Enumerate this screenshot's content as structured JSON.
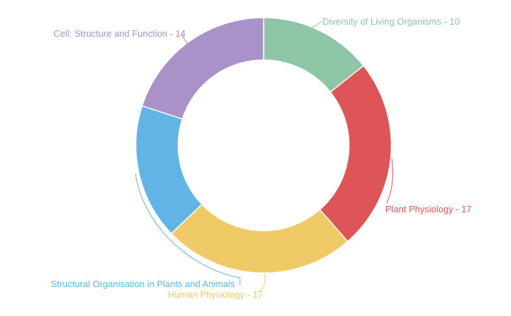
{
  "chart_data": {
    "type": "pie",
    "variant": "donut",
    "title": "",
    "categories": [
      "Diversity of Living Organisms",
      "Plant Physiology",
      "Human Physiology",
      "Structural Organisation in Plants and Animals",
      "Cell: Structure and Function"
    ],
    "values": [
      10,
      17,
      17,
      12,
      14
    ],
    "colors": [
      "#8fc5a7",
      "#de5558",
      "#efca67",
      "#62b4e6",
      "#a992c8"
    ],
    "labels": [
      "Diversity of Living Organisms - 10",
      "Plant Physiology - 17",
      "Human Physiology - 17",
      "Structural Organisation in Plants and Animals",
      "Cell: Structure and Function - 14"
    ],
    "legend": "none"
  }
}
